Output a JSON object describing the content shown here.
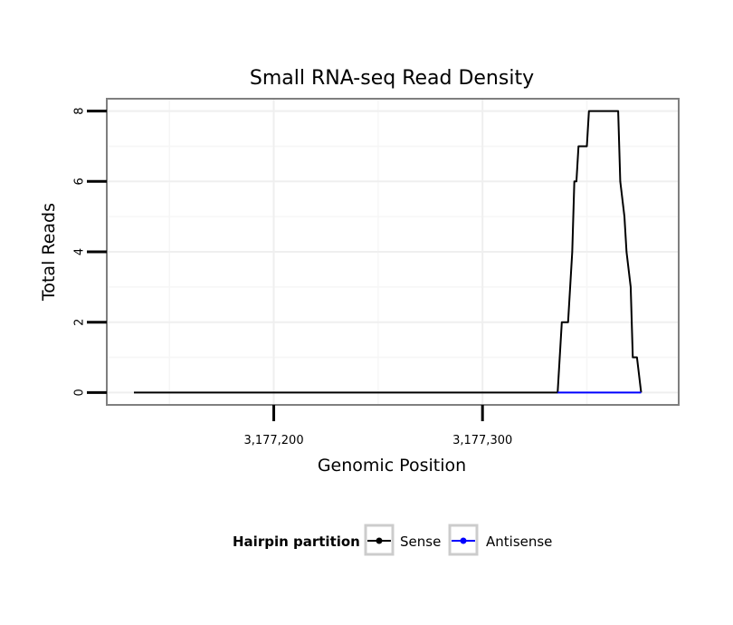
{
  "chart_data": {
    "type": "line",
    "title": "Small RNA-seq Read Density",
    "xlabel": "Genomic Position",
    "ylabel": "Total Reads",
    "xlim": [
      3177120,
      3177394
    ],
    "ylim": [
      -0.35,
      8.35
    ],
    "x_ticks": [
      3177200,
      3177300
    ],
    "x_tick_labels": [
      "3,177,200",
      "3,177,300"
    ],
    "y_ticks": [
      0,
      2,
      4,
      6,
      8
    ],
    "y_tick_labels": [
      "0",
      "2",
      "4",
      "6",
      "8"
    ],
    "grid": true,
    "legend": {
      "title": "Hairpin partition",
      "placement": "bottom",
      "entries": [
        "Sense",
        "Antisense"
      ]
    },
    "series": [
      {
        "name": "Sense",
        "color": "#000000",
        "x": [
          3177133,
          3177336,
          3177338,
          3177340,
          3177341,
          3177343,
          3177344,
          3177345,
          3177346,
          3177347,
          3177349,
          3177350,
          3177351,
          3177355,
          3177356,
          3177365,
          3177366,
          3177368,
          3177369,
          3177371,
          3177372,
          3177373,
          3177374,
          3177376
        ],
        "values": [
          0,
          0,
          2,
          2,
          2,
          4,
          6,
          6,
          7,
          7,
          7,
          7,
          8,
          8,
          8,
          8,
          6,
          5,
          4,
          3,
          1,
          1,
          1,
          0
        ]
      },
      {
        "name": "Antisense",
        "color": "#0000ff",
        "x": [
          3177336,
          3177376
        ],
        "values": [
          0,
          0
        ]
      }
    ]
  }
}
